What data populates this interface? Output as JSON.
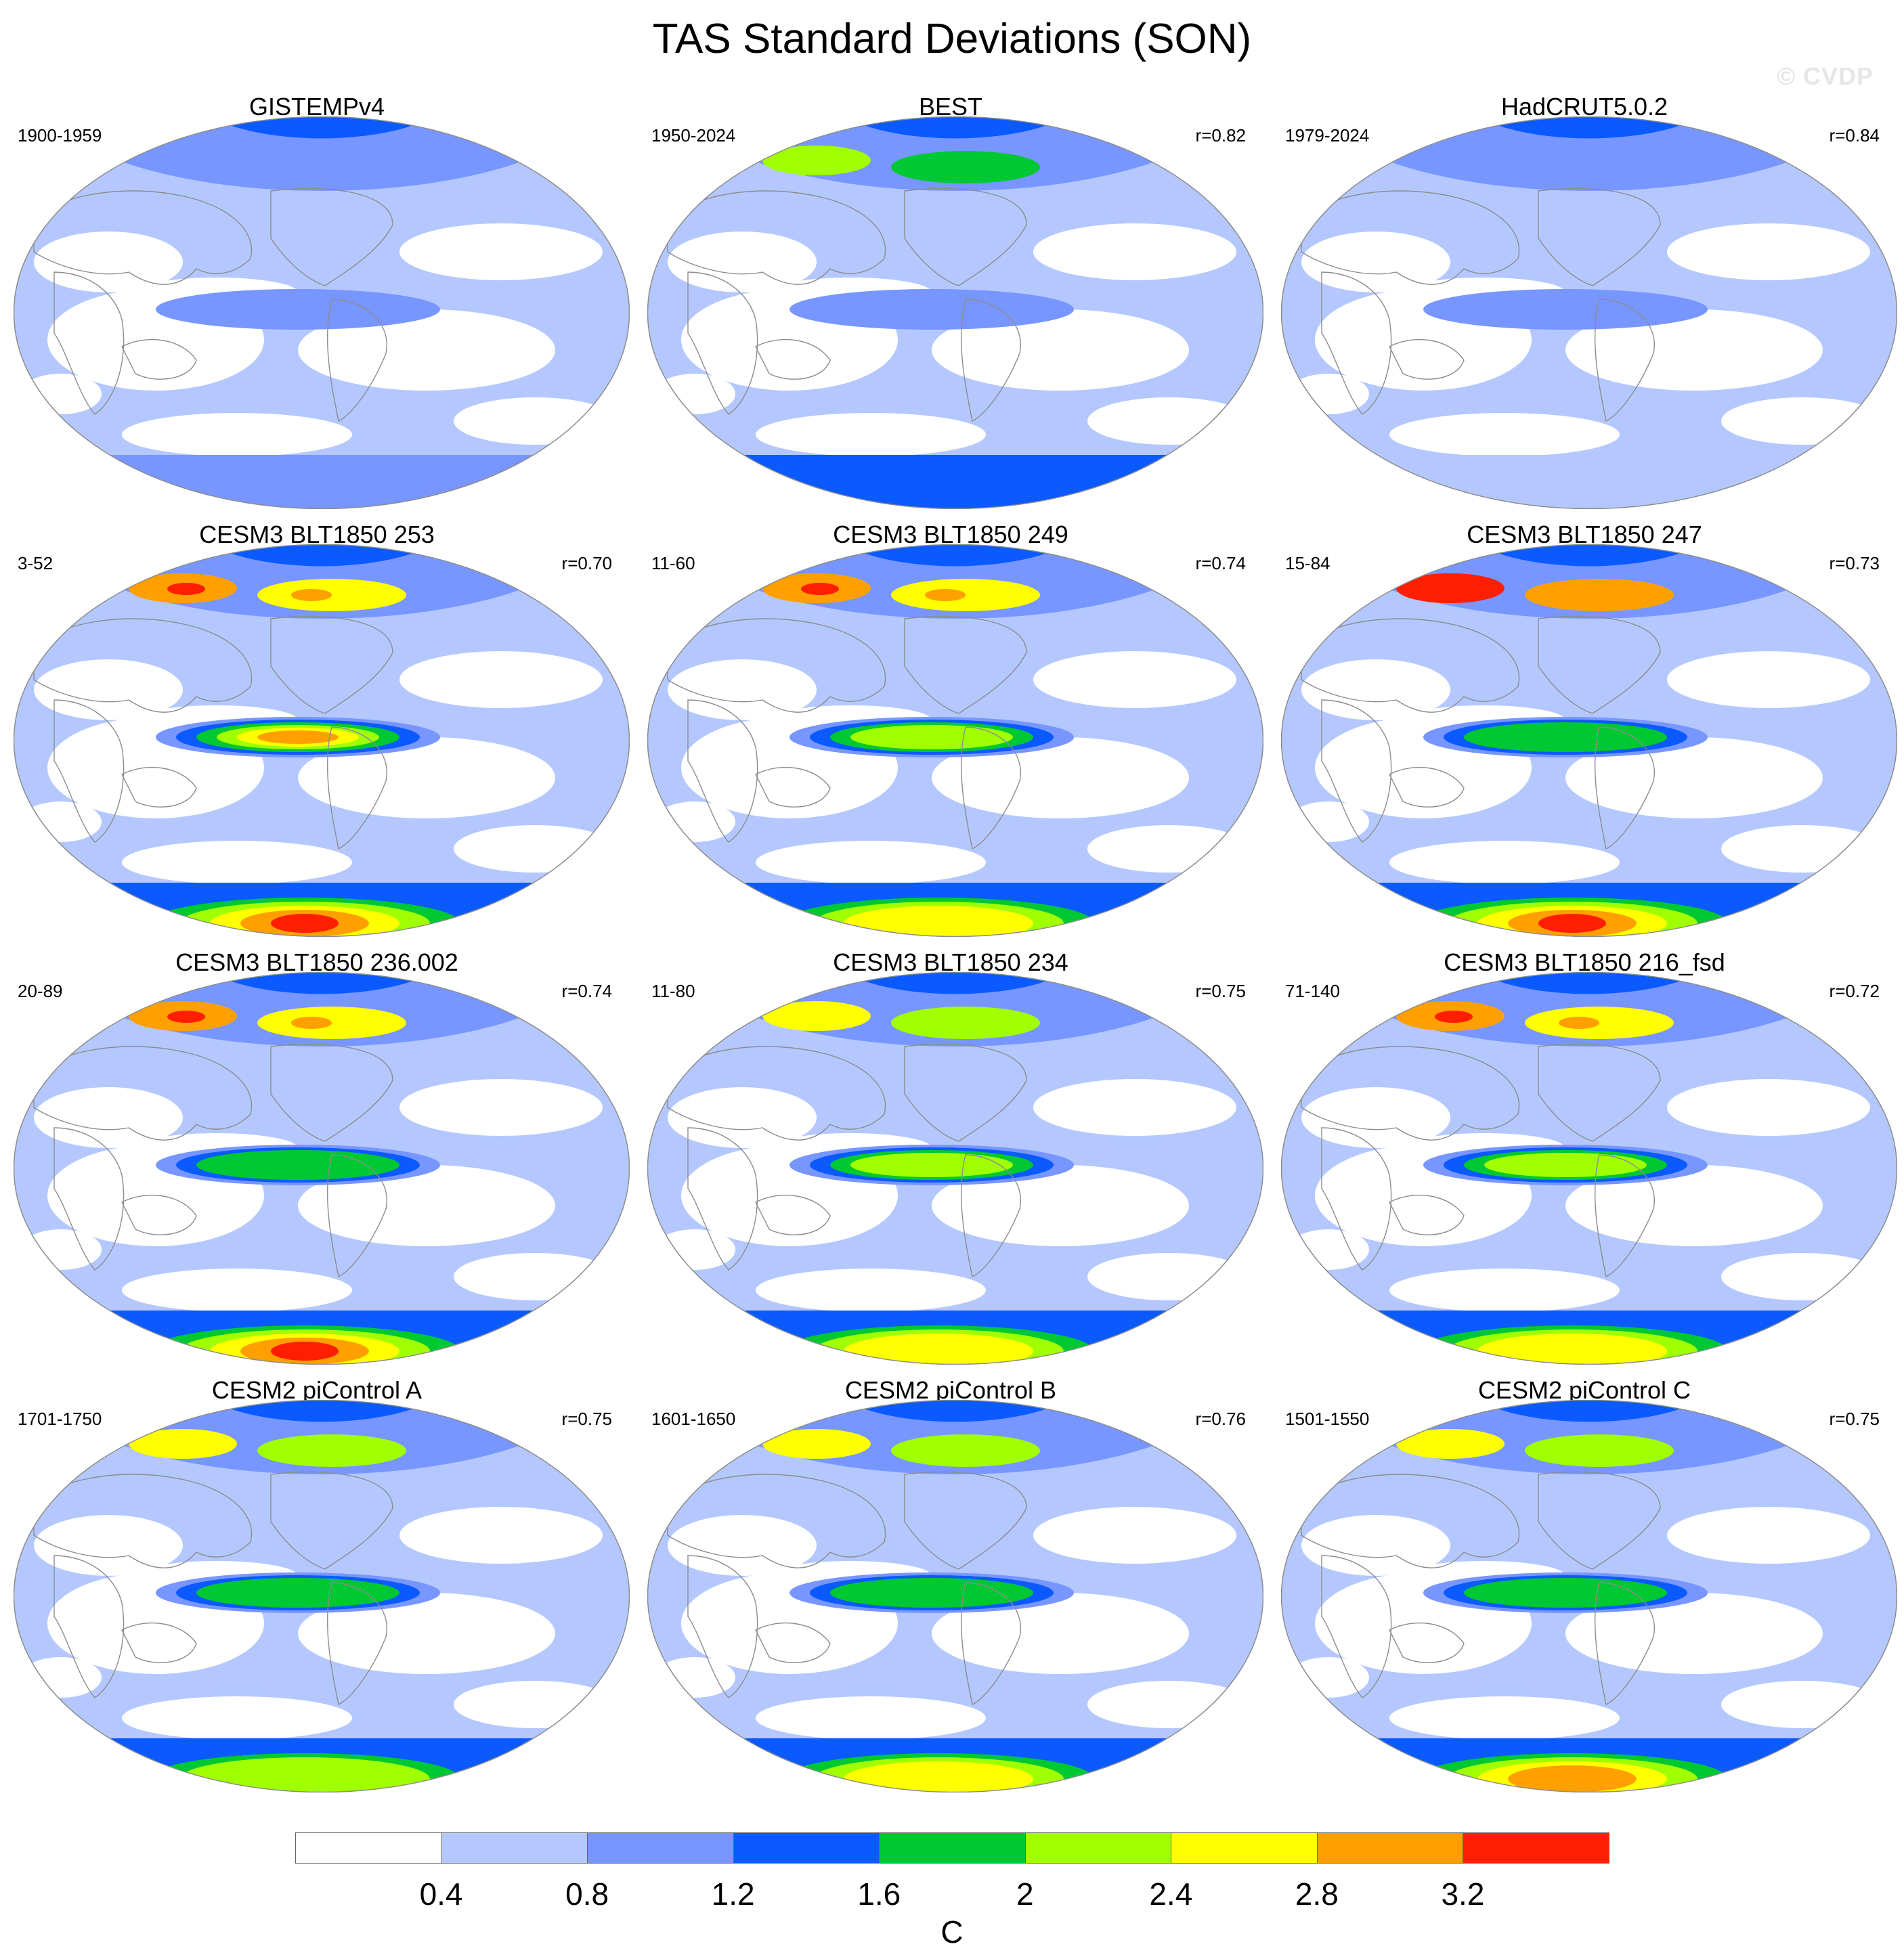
{
  "title": "TAS Standard Deviations (SON)",
  "watermark": "© CVDP",
  "colors": {
    "levels": [
      "#ffffff",
      "#b4c8ff",
      "#7896ff",
      "#0a5aff",
      "#00c832",
      "#a0ff00",
      "#ffff00",
      "#ffa000",
      "#ff1e00"
    ],
    "coast": "#8c8c8c"
  },
  "colorbar": {
    "ticks": [
      "0.4",
      "0.8",
      "1.2",
      "1.6",
      "2",
      "2.4",
      "2.8",
      "3.2"
    ],
    "units": "C"
  },
  "panels": [
    {
      "title": "GISTEMPv4",
      "years": "1900-1959",
      "r": "",
      "arctic": 4,
      "enso": 2,
      "antarctic": 2
    },
    {
      "title": "BEST",
      "years": "1950-2024",
      "r": "r=0.82",
      "arctic": 5,
      "enso": 2,
      "antarctic": 3
    },
    {
      "title": "HadCRUT5.0.2",
      "years": "1979-2024",
      "r": "r=0.84",
      "arctic": 4,
      "enso": 2,
      "antarctic": 1
    },
    {
      "title": "CESM3 BLT1850 253",
      "years": "3-52",
      "r": "r=0.70",
      "arctic": 7,
      "enso": 7,
      "antarctic": 8
    },
    {
      "title": "CESM3 BLT1850 249",
      "years": "11-60",
      "r": "r=0.74",
      "arctic": 7,
      "enso": 5,
      "antarctic": 6
    },
    {
      "title": "CESM3 BLT1850 247",
      "years": "15-84",
      "r": "r=0.73",
      "arctic": 8,
      "enso": 4,
      "antarctic": 8
    },
    {
      "title": "CESM3 BLT1850 236.002",
      "years": "20-89",
      "r": "r=0.74",
      "arctic": 7,
      "enso": 4,
      "antarctic": 8
    },
    {
      "title": "CESM3 BLT1850 234",
      "years": "11-80",
      "r": "r=0.75",
      "arctic": 6,
      "enso": 5,
      "antarctic": 6
    },
    {
      "title": "CESM3 BLT1850 216_fsd",
      "years": "71-140",
      "r": "r=0.72",
      "arctic": 7,
      "enso": 5,
      "antarctic": 6
    },
    {
      "title": "CESM2 piControl A",
      "years": "1701-1750",
      "r": "r=0.75",
      "arctic": 6,
      "enso": 4,
      "antarctic": 5
    },
    {
      "title": "CESM2 piControl B",
      "years": "1601-1650",
      "r": "r=0.76",
      "arctic": 6,
      "enso": 4,
      "antarctic": 6
    },
    {
      "title": "CESM2 piControl C",
      "years": "1501-1550",
      "r": "r=0.75",
      "arctic": 6,
      "enso": 4,
      "antarctic": 7
    }
  ]
}
